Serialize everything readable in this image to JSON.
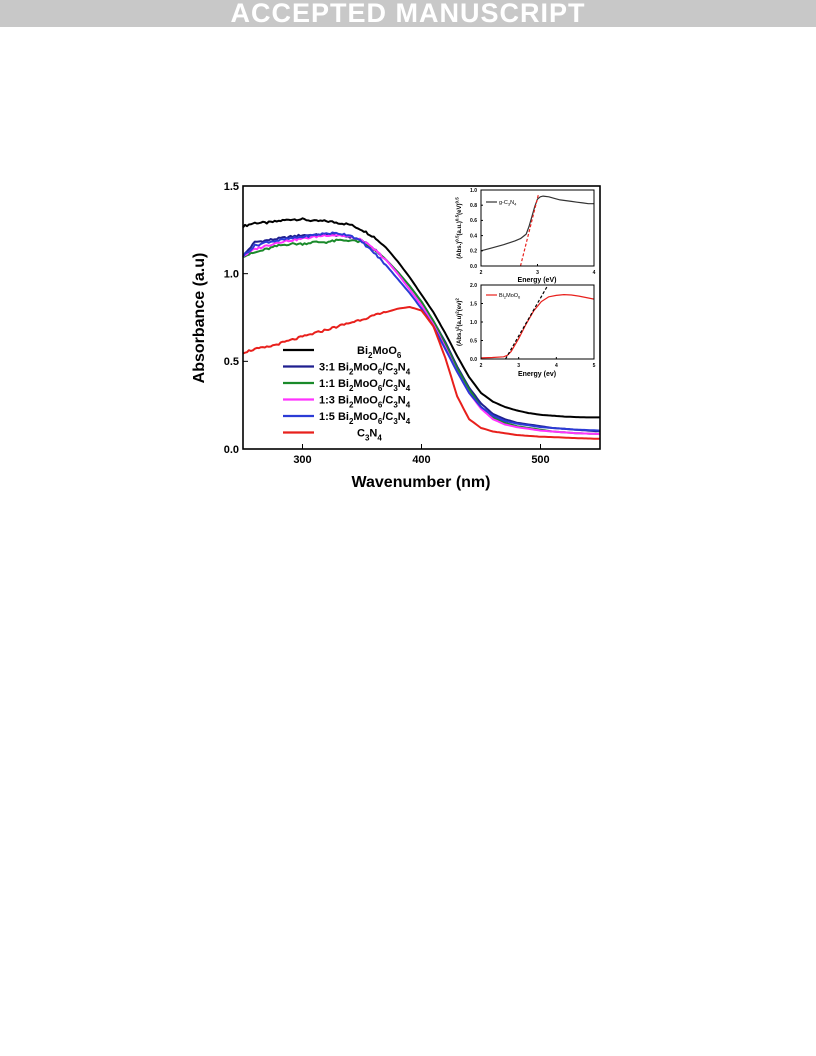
{
  "banner": "ACCEPTED MANUSCRIPT",
  "chart_data": [
    {
      "type": "line",
      "xlabel": "Wavenumber (nm)",
      "ylabel": "Absorbance (a.u)",
      "xlim": [
        250,
        550
      ],
      "ylim": [
        0,
        1.5
      ],
      "xticks": [
        300,
        400,
        500
      ],
      "yticks": [
        0.0,
        0.5,
        1.0,
        1.5
      ],
      "x": [
        250,
        260,
        270,
        280,
        290,
        300,
        310,
        320,
        330,
        340,
        350,
        360,
        370,
        380,
        390,
        400,
        410,
        420,
        430,
        440,
        450,
        460,
        470,
        480,
        490,
        500,
        510,
        520,
        530,
        540,
        550
      ],
      "legend_position": "lower-left",
      "series": [
        {
          "name": "Bi2MoO6",
          "color": "#000000",
          "values": [
            1.27,
            1.29,
            1.29,
            1.3,
            1.31,
            1.31,
            1.3,
            1.3,
            1.29,
            1.28,
            1.25,
            1.21,
            1.15,
            1.07,
            0.98,
            0.88,
            0.78,
            0.66,
            0.53,
            0.41,
            0.32,
            0.27,
            0.24,
            0.22,
            0.205,
            0.195,
            0.19,
            0.185,
            0.182,
            0.18,
            0.18
          ]
        },
        {
          "name": "3:1 Bi2MoO6/C3N4",
          "color": "#1f1f8f",
          "values": [
            1.1,
            1.18,
            1.19,
            1.2,
            1.21,
            1.22,
            1.22,
            1.22,
            1.22,
            1.21,
            1.19,
            1.14,
            1.08,
            1.01,
            0.93,
            0.84,
            0.73,
            0.61,
            0.47,
            0.35,
            0.26,
            0.2,
            0.17,
            0.15,
            0.14,
            0.13,
            0.12,
            0.115,
            0.11,
            0.105,
            0.1
          ]
        },
        {
          "name": "1:1 Bi2MoO6/C3N4",
          "color": "#1a8a2a",
          "values": [
            1.1,
            1.12,
            1.14,
            1.16,
            1.17,
            1.17,
            1.18,
            1.18,
            1.19,
            1.19,
            1.18,
            1.14,
            1.08,
            1.01,
            0.93,
            0.84,
            0.73,
            0.6,
            0.46,
            0.34,
            0.24,
            0.18,
            0.15,
            0.13,
            0.12,
            0.11,
            0.1,
            0.095,
            0.09,
            0.088,
            0.085
          ]
        },
        {
          "name": "1:3 Bi2MoO6/C3N4",
          "color": "#ff33ff",
          "values": [
            1.1,
            1.14,
            1.16,
            1.18,
            1.19,
            1.2,
            1.21,
            1.22,
            1.22,
            1.21,
            1.19,
            1.14,
            1.08,
            1.0,
            0.91,
            0.82,
            0.71,
            0.58,
            0.44,
            0.32,
            0.23,
            0.17,
            0.14,
            0.125,
            0.115,
            0.105,
            0.1,
            0.095,
            0.09,
            0.088,
            0.085
          ]
        },
        {
          "name": "1:5 Bi2MoO6/C3N4",
          "color": "#2b3bd6",
          "values": [
            1.1,
            1.16,
            1.18,
            1.19,
            1.2,
            1.21,
            1.22,
            1.23,
            1.23,
            1.22,
            1.18,
            1.12,
            1.05,
            0.97,
            0.89,
            0.8,
            0.7,
            0.57,
            0.44,
            0.32,
            0.24,
            0.19,
            0.16,
            0.145,
            0.135,
            0.125,
            0.12,
            0.115,
            0.11,
            0.108,
            0.105
          ]
        },
        {
          "name": "C3N4",
          "color": "#e8201c",
          "values": [
            0.55,
            0.57,
            0.58,
            0.6,
            0.62,
            0.64,
            0.66,
            0.68,
            0.7,
            0.72,
            0.74,
            0.76,
            0.78,
            0.8,
            0.81,
            0.79,
            0.7,
            0.52,
            0.3,
            0.17,
            0.12,
            0.1,
            0.09,
            0.08,
            0.075,
            0.07,
            0.068,
            0.065,
            0.062,
            0.06,
            0.058
          ]
        }
      ],
      "legend": [
        {
          "label": "Bi",
          "sub": "2",
          "label2": "MoO",
          "sub2": "6",
          "label3": "",
          "sub3": "",
          "label4": "",
          "sub4": ""
        },
        {
          "label": "3:1 Bi",
          "sub": "2",
          "label2": "MoO",
          "sub2": "6",
          "label3": "/C",
          "sub3": "3",
          "label4": "N",
          "sub4": "4"
        },
        {
          "label": "1:1 Bi",
          "sub": "2",
          "label2": "MoO",
          "sub2": "6",
          "label3": "/C",
          "sub3": "3",
          "label4": "N",
          "sub4": "4"
        },
        {
          "label": "1:3 Bi",
          "sub": "2",
          "label2": "MoO",
          "sub2": "6",
          "label3": "/C",
          "sub3": "3",
          "label4": "N",
          "sub4": "4"
        },
        {
          "label": "1:5 Bi",
          "sub": "2",
          "label2": "MoO",
          "sub2": "6",
          "label3": "/C",
          "sub3": "3",
          "label4": "N",
          "sub4": "4"
        },
        {
          "label": "C",
          "sub": "3",
          "label2": "N",
          "sub2": "4",
          "label3": "",
          "sub3": "",
          "label4": "",
          "sub4": ""
        }
      ]
    },
    {
      "type": "line",
      "xlabel": "Energy (eV)",
      "ylabel": "(Abs.)0.5(a.u.)0.5(eV)0.5",
      "ylabel_parts": {
        "a": "(Abs.)",
        "s1": "0.5",
        "b": "(a.u.)",
        "s2": "0.5",
        "c": "(eV)",
        "s3": "0.5"
      },
      "xlim": [
        2,
        4
      ],
      "ylim": [
        0,
        1.0
      ],
      "xticks": [
        2,
        3,
        4
      ],
      "yticks": [
        0.0,
        0.2,
        0.4,
        0.6,
        0.8,
        1.0
      ],
      "legend": {
        "label": "g-C",
        "sub": "3",
        "label2": "N",
        "sub2": "4"
      },
      "series": [
        {
          "name": "g-C3N4",
          "color": "#333333",
          "x": [
            2.0,
            2.2,
            2.4,
            2.6,
            2.7,
            2.8,
            2.85,
            2.9,
            2.95,
            3.0,
            3.05,
            3.1,
            3.2,
            3.3,
            3.4,
            3.5,
            3.6,
            3.7,
            3.8,
            3.9,
            4.0
          ],
          "values": [
            0.2,
            0.24,
            0.28,
            0.33,
            0.36,
            0.42,
            0.52,
            0.65,
            0.78,
            0.88,
            0.91,
            0.92,
            0.91,
            0.89,
            0.87,
            0.86,
            0.85,
            0.84,
            0.83,
            0.82,
            0.82
          ]
        },
        {
          "name": "",
          "color": "#e8201c",
          "dashed": true,
          "x": [
            2.7,
            3.02
          ],
          "values": [
            0.0,
            0.95
          ]
        }
      ]
    },
    {
      "type": "line",
      "xlabel": "Energy (ev)",
      "ylabel": "(Abs.)2(a.u)2(ev)2",
      "ylabel_parts": {
        "a": "(Abs.)",
        "s1": "2",
        "b": "(a.u)",
        "s2": "2",
        "c": "(ev)",
        "s3": "2"
      },
      "xlim": [
        2,
        5
      ],
      "ylim": [
        0,
        2.0
      ],
      "xticks": [
        2,
        3,
        4,
        5
      ],
      "yticks": [
        0.0,
        0.5,
        1.0,
        1.5,
        2.0
      ],
      "legend": {
        "label": "Bi",
        "sub": "2",
        "label2": "MoO",
        "sub2": "6"
      },
      "series": [
        {
          "name": "Bi2MoO6",
          "color": "#e8201c",
          "x": [
            2.0,
            2.3,
            2.6,
            2.7,
            2.8,
            3.0,
            3.2,
            3.4,
            3.6,
            3.8,
            4.0,
            4.2,
            4.4,
            4.6,
            4.8,
            5.0
          ],
          "values": [
            0.03,
            0.04,
            0.06,
            0.1,
            0.2,
            0.55,
            0.95,
            1.3,
            1.55,
            1.68,
            1.72,
            1.74,
            1.73,
            1.7,
            1.66,
            1.62
          ]
        },
        {
          "name": "",
          "color": "#000000",
          "dashed": true,
          "x": [
            2.65,
            3.75
          ],
          "values": [
            0.0,
            1.95
          ]
        }
      ]
    }
  ]
}
